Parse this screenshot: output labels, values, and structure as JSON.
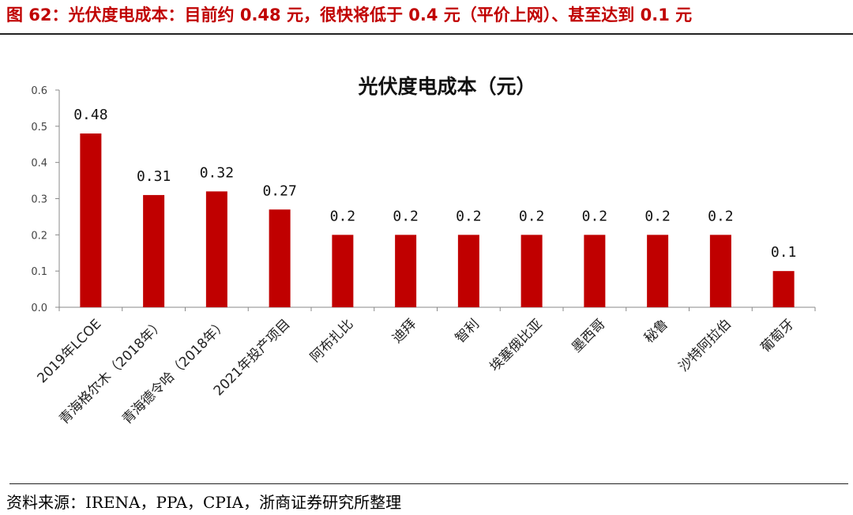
{
  "figure": {
    "title": "图 62：光伏度电成本：目前约 0.48 元，很快将低于 0.4 元（平价上网）、甚至达到 0.1 元",
    "source": "资料来源：IRENA，PPA，CPIA，浙商证券研究所整理"
  },
  "colors": {
    "bar": "#c00000",
    "accent": "#c00000",
    "axis": "#888888"
  },
  "chart_data": {
    "type": "bar",
    "title": "光伏度电成本（元）",
    "categories": [
      "2019年LCOE",
      "青海格尔木（2018年）",
      "青海德令哈（2018年）",
      "2021年投产项目",
      "阿布扎比",
      "迪拜",
      "智利",
      "埃塞俄比亚",
      "墨西哥",
      "秘鲁",
      "沙特阿拉伯",
      "葡萄牙"
    ],
    "values": [
      0.48,
      0.31,
      0.32,
      0.27,
      0.2,
      0.2,
      0.2,
      0.2,
      0.2,
      0.2,
      0.2,
      0.1
    ],
    "data_labels": [
      "0.48",
      "0.31",
      "0.32",
      "0.27",
      "0.2",
      "0.2",
      "0.2",
      "0.2",
      "0.2",
      "0.2",
      "0.2",
      "0.1"
    ],
    "yticks": [
      "0.0",
      "0.1",
      "0.2",
      "0.3",
      "0.4",
      "0.5",
      "0.6"
    ],
    "ylim": [
      0,
      0.6
    ],
    "xlabel": "",
    "ylabel": "",
    "grid": false,
    "legend": "none"
  }
}
